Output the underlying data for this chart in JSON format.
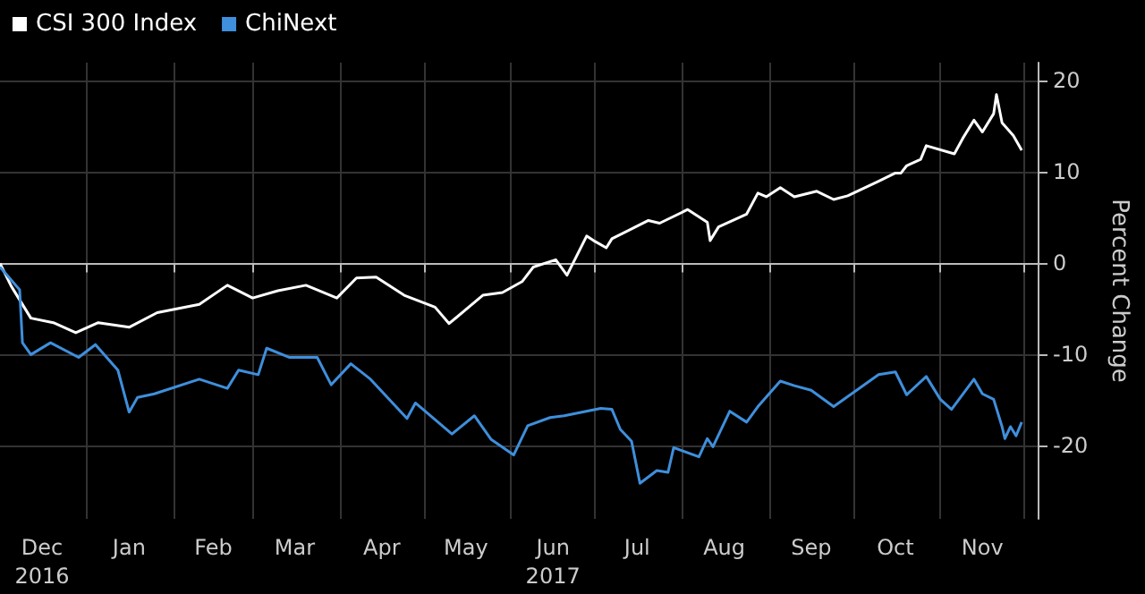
{
  "chart_data": {
    "type": "line",
    "ylabel": "Percent Change",
    "legend": "top left",
    "grid": true,
    "marker": "none",
    "line_style": "solid",
    "xlim": [
      "2016-12-01",
      "2017-12-06"
    ],
    "ylim": [
      -28,
      22
    ],
    "yticks": [
      -20,
      -10,
      0,
      10,
      20
    ],
    "xticks": [
      {
        "value": "2016-12-16",
        "label": "Dec\n2016"
      },
      {
        "value": "2017-01-01",
        "label": null
      },
      {
        "value": "2017-01-16",
        "label": "Jan"
      },
      {
        "value": "2017-02-01",
        "label": null
      },
      {
        "value": "2017-02-15",
        "label": "Feb"
      },
      {
        "value": "2017-03-01",
        "label": null
      },
      {
        "value": "2017-03-16",
        "label": "Mar"
      },
      {
        "value": "2017-04-01",
        "label": null
      },
      {
        "value": "2017-04-16",
        "label": "Apr"
      },
      {
        "value": "2017-05-01",
        "label": null
      },
      {
        "value": "2017-05-16",
        "label": "May"
      },
      {
        "value": "2017-06-01",
        "label": null
      },
      {
        "value": "2017-06-16",
        "label": "Jun\n2017"
      },
      {
        "value": "2017-07-01",
        "label": null
      },
      {
        "value": "2017-07-16",
        "label": "Jul"
      },
      {
        "value": "2017-08-01",
        "label": null
      },
      {
        "value": "2017-08-16",
        "label": "Aug"
      },
      {
        "value": "2017-09-01",
        "label": null
      },
      {
        "value": "2017-09-16",
        "label": "Sep"
      },
      {
        "value": "2017-10-01",
        "label": null
      },
      {
        "value": "2017-10-16",
        "label": "Oct"
      },
      {
        "value": "2017-11-01",
        "label": null
      },
      {
        "value": "2017-11-16",
        "label": "Nov"
      },
      {
        "value": "2017-12-01",
        "label": null
      }
    ],
    "series": [
      {
        "name": "CSI 300 Index",
        "color": "#ffffff",
        "x": [
          "2016-12-01",
          "2016-12-05",
          "2016-12-12",
          "2016-12-20",
          "2016-12-28",
          "2017-01-05",
          "2017-01-16",
          "2017-01-26",
          "2017-02-10",
          "2017-02-20",
          "2017-03-01",
          "2017-03-10",
          "2017-03-20",
          "2017-03-31",
          "2017-04-07",
          "2017-04-14",
          "2017-04-24",
          "2017-05-05",
          "2017-05-10",
          "2017-05-22",
          "2017-05-29",
          "2017-06-05",
          "2017-06-09",
          "2017-06-17",
          "2017-06-21",
          "2017-06-28",
          "2017-07-01",
          "2017-07-05",
          "2017-07-07",
          "2017-07-20",
          "2017-07-24",
          "2017-08-03",
          "2017-08-10",
          "2017-08-11",
          "2017-08-14",
          "2017-08-24",
          "2017-08-28",
          "2017-08-31",
          "2017-09-05",
          "2017-09-10",
          "2017-09-18",
          "2017-09-24",
          "2017-09-29",
          "2017-10-10",
          "2017-10-16",
          "2017-10-18",
          "2017-10-20",
          "2017-10-25",
          "2017-10-27",
          "2017-11-06",
          "2017-11-09",
          "2017-11-13",
          "2017-11-16",
          "2017-11-20",
          "2017-11-21",
          "2017-11-23",
          "2017-11-27",
          "2017-11-30"
        ],
        "values": [
          0,
          -2.5,
          -6,
          -6.5,
          -7.6,
          -6.5,
          -7,
          -5.4,
          -4.5,
          -2.4,
          -3.8,
          -3,
          -2.4,
          -3.8,
          -1.6,
          -1.5,
          -3.5,
          -4.8,
          -6.6,
          -3.5,
          -3.2,
          -2,
          -0.4,
          0.4,
          -1.3,
          3,
          2.4,
          1.7,
          2.7,
          4.7,
          4.4,
          5.9,
          4.5,
          2.5,
          4,
          5.4,
          7.7,
          7.3,
          8.3,
          7.3,
          7.9,
          7,
          7.4,
          9,
          9.9,
          9.9,
          10.7,
          11.4,
          12.9,
          12,
          13.7,
          15.7,
          14.4,
          16.4,
          18.5,
          15.4,
          14,
          12.4
        ]
      },
      {
        "name": "ChiNext",
        "color": "#3f8fdc",
        "x": [
          "2016-12-01",
          "2016-12-08",
          "2016-12-09",
          "2016-12-12",
          "2016-12-19",
          "2016-12-29",
          "2017-01-04",
          "2017-01-12",
          "2017-01-16",
          "2017-01-19",
          "2017-01-25",
          "2017-02-10",
          "2017-02-20",
          "2017-02-24",
          "2017-03-03",
          "2017-03-06",
          "2017-03-14",
          "2017-03-24",
          "2017-03-29",
          "2017-04-05",
          "2017-04-12",
          "2017-04-25",
          "2017-04-28",
          "2017-05-11",
          "2017-05-19",
          "2017-05-25",
          "2017-06-02",
          "2017-06-07",
          "2017-06-15",
          "2017-06-20",
          "2017-07-03",
          "2017-07-07",
          "2017-07-10",
          "2017-07-14",
          "2017-07-17",
          "2017-07-23",
          "2017-07-27",
          "2017-07-29",
          "2017-08-07",
          "2017-08-10",
          "2017-08-12",
          "2017-08-18",
          "2017-08-24",
          "2017-08-28",
          "2017-09-05",
          "2017-09-10",
          "2017-09-16",
          "2017-09-24",
          "2017-10-10",
          "2017-10-16",
          "2017-10-20",
          "2017-10-27",
          "2017-11-01",
          "2017-11-05",
          "2017-11-13",
          "2017-11-16",
          "2017-11-20",
          "2017-11-23",
          "2017-11-24",
          "2017-11-26",
          "2017-11-28",
          "2017-11-30"
        ],
        "values": [
          -0.4,
          -2.9,
          -8.7,
          -10,
          -8.7,
          -10.3,
          -8.9,
          -11.7,
          -16.3,
          -14.7,
          -14.3,
          -12.7,
          -13.7,
          -11.7,
          -12.2,
          -9.3,
          -10.3,
          -10.3,
          -13.3,
          -11,
          -12.7,
          -17,
          -15.3,
          -18.7,
          -16.7,
          -19.3,
          -21,
          -17.8,
          -16.9,
          -16.7,
          -15.9,
          -16,
          -18.2,
          -19.5,
          -24.1,
          -22.7,
          -22.9,
          -20.2,
          -21.2,
          -19.2,
          -20.1,
          -16.2,
          -17.4,
          -15.7,
          -12.9,
          -13.4,
          -13.9,
          -15.7,
          -12.2,
          -11.9,
          -14.4,
          -12.4,
          -14.9,
          -16,
          -12.7,
          -14.3,
          -14.9,
          -17.9,
          -19.2,
          -17.9,
          -18.9,
          -17.4
        ]
      }
    ]
  }
}
